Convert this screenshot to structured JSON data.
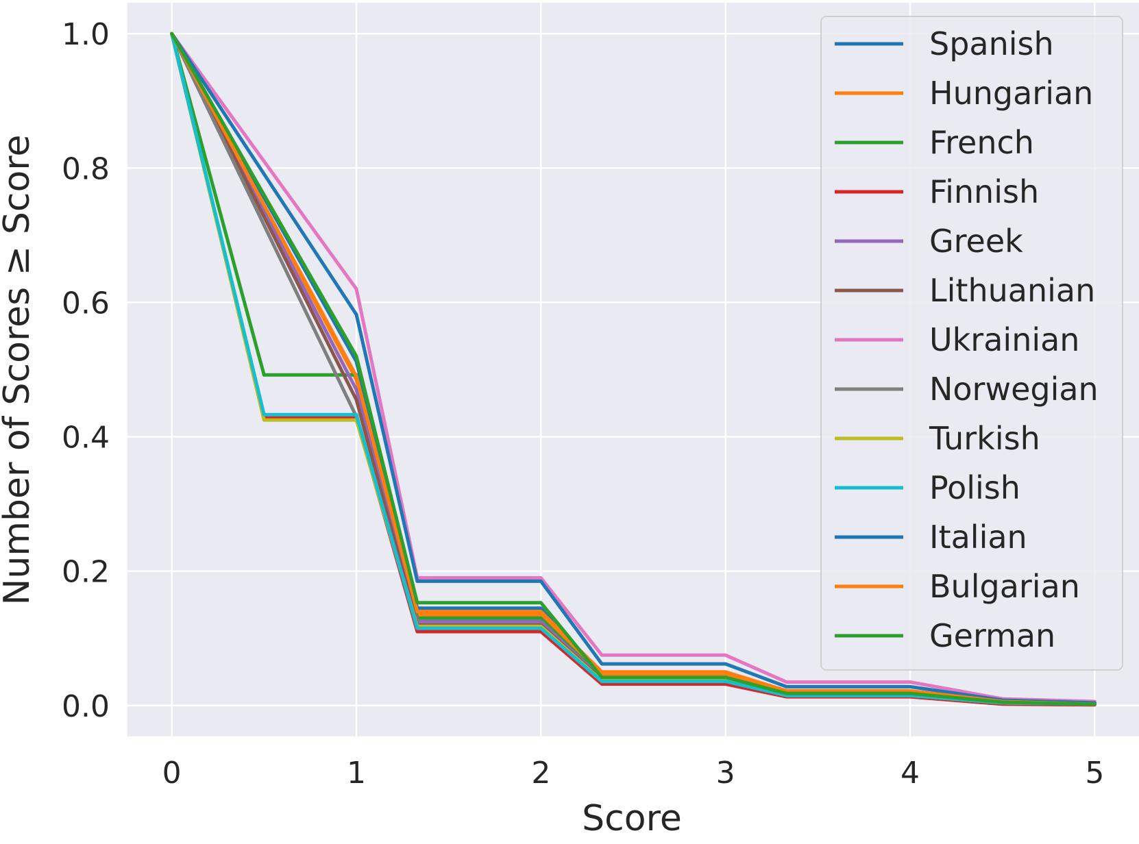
{
  "chart_data": {
    "type": "line",
    "title": "",
    "xlabel": "Score",
    "ylabel": "Number of Scores ≥ Score",
    "xlim": [
      -0.24,
      5.24
    ],
    "ylim": [
      -0.046,
      1.046
    ],
    "xticks": [
      "0",
      "1",
      "2",
      "3",
      "4",
      "5"
    ],
    "yticks": [
      "0.0",
      "0.2",
      "0.4",
      "0.6",
      "0.8",
      "1.0"
    ],
    "grid": true,
    "legend_position": "upper right",
    "plot_background": "#eaeaf2",
    "series": [
      {
        "name": "Spanish",
        "color": "#1f77b4",
        "x": [
          0,
          1,
          1.33,
          2,
          2.33,
          3,
          3.33,
          4,
          4.5,
          5
        ],
        "y": [
          1.0,
          0.512,
          0.145,
          0.145,
          0.045,
          0.045,
          0.02,
          0.02,
          0.008,
          0.003
        ]
      },
      {
        "name": "Hungarian",
        "color": "#ff7f0e",
        "x": [
          0,
          1,
          1.33,
          2,
          2.33,
          3,
          3.33,
          4,
          4.5,
          5
        ],
        "y": [
          1.0,
          0.485,
          0.135,
          0.135,
          0.045,
          0.045,
          0.02,
          0.02,
          0.004,
          0.002
        ]
      },
      {
        "name": "French",
        "color": "#2ca02c",
        "x": [
          0,
          0.5,
          1,
          1.33,
          2,
          2.33,
          3,
          3.33,
          4,
          4.5,
          5
        ],
        "y": [
          1.0,
          0.492,
          0.492,
          0.13,
          0.13,
          0.04,
          0.04,
          0.016,
          0.016,
          0.004,
          0.002
        ]
      },
      {
        "name": "Finnish",
        "color": "#d62728",
        "x": [
          0,
          0.5,
          1,
          1.33,
          2,
          2.33,
          3,
          3.33,
          4,
          4.5,
          5
        ],
        "y": [
          1.0,
          0.428,
          0.428,
          0.11,
          0.11,
          0.032,
          0.032,
          0.013,
          0.013,
          0.002,
          0.001
        ]
      },
      {
        "name": "Greek",
        "color": "#9467bd",
        "x": [
          0,
          1,
          1.33,
          2,
          2.33,
          3,
          3.33,
          4,
          4.5,
          5
        ],
        "y": [
          1.0,
          0.47,
          0.125,
          0.125,
          0.04,
          0.04,
          0.018,
          0.018,
          0.005,
          0.002
        ]
      },
      {
        "name": "Lithuanian",
        "color": "#8c564b",
        "x": [
          0,
          1,
          1.33,
          2,
          2.33,
          3,
          3.33,
          4,
          4.5,
          5
        ],
        "y": [
          1.0,
          0.455,
          0.12,
          0.12,
          0.038,
          0.038,
          0.016,
          0.016,
          0.004,
          0.002
        ]
      },
      {
        "name": "Ukrainian",
        "color": "#e377c2",
        "x": [
          0,
          1,
          1.33,
          2,
          2.33,
          3,
          3.33,
          4,
          4.5,
          5
        ],
        "y": [
          1.0,
          0.62,
          0.19,
          0.19,
          0.075,
          0.075,
          0.035,
          0.035,
          0.01,
          0.006
        ]
      },
      {
        "name": "Norwegian",
        "color": "#7f7f7f",
        "x": [
          0,
          1,
          1.33,
          2,
          2.33,
          3,
          3.33,
          4,
          4.5,
          5
        ],
        "y": [
          1.0,
          0.43,
          0.115,
          0.115,
          0.036,
          0.036,
          0.015,
          0.015,
          0.004,
          0.002
        ]
      },
      {
        "name": "Turkish",
        "color": "#bcbd22",
        "x": [
          0,
          0.5,
          1,
          1.33,
          2,
          2.33,
          3,
          3.33,
          4,
          4.5,
          5
        ],
        "y": [
          1.0,
          0.425,
          0.425,
          0.118,
          0.118,
          0.037,
          0.037,
          0.015,
          0.015,
          0.004,
          0.002
        ]
      },
      {
        "name": "Polish",
        "color": "#17becf",
        "x": [
          0,
          0.5,
          1,
          1.33,
          2,
          2.33,
          3,
          3.33,
          4,
          4.5,
          5
        ],
        "y": [
          1.0,
          0.433,
          0.433,
          0.115,
          0.115,
          0.036,
          0.036,
          0.015,
          0.015,
          0.004,
          0.002
        ]
      },
      {
        "name": "Italian",
        "color": "#1f77b4",
        "x": [
          0,
          1,
          1.33,
          2,
          2.33,
          3,
          3.33,
          4,
          4.5,
          5
        ],
        "y": [
          1.0,
          0.582,
          0.185,
          0.185,
          0.062,
          0.062,
          0.028,
          0.028,
          0.008,
          0.004
        ]
      },
      {
        "name": "Bulgarian",
        "color": "#ff7f0e",
        "x": [
          0,
          1,
          1.33,
          2,
          2.33,
          3,
          3.33,
          4,
          4.5,
          5
        ],
        "y": [
          1.0,
          0.49,
          0.14,
          0.14,
          0.05,
          0.05,
          0.022,
          0.022,
          0.006,
          0.002
        ]
      },
      {
        "name": "German",
        "color": "#2ca02c",
        "x": [
          0,
          1,
          1.33,
          2,
          2.33,
          3,
          3.33,
          4,
          4.5,
          5
        ],
        "y": [
          1.0,
          0.52,
          0.153,
          0.153,
          0.042,
          0.042,
          0.018,
          0.018,
          0.005,
          0.002
        ]
      }
    ]
  }
}
